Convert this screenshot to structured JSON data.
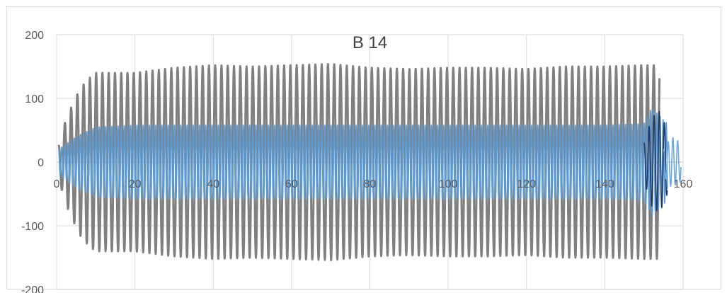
{
  "chart_data": {
    "type": "line",
    "title": "B 14",
    "xlabel": "",
    "ylabel": "",
    "xlim": [
      0,
      160
    ],
    "ylim": [
      -200,
      200
    ],
    "x_ticks": [
      0,
      20,
      40,
      60,
      80,
      100,
      120,
      140,
      160
    ],
    "x_tick_labels": [
      "0",
      "20",
      "40",
      "60",
      "80",
      "100",
      "120",
      "140",
      "160"
    ],
    "y_ticks": [
      -200,
      -100,
      0,
      100,
      200
    ],
    "y_tick_labels": [
      "-200",
      "-100",
      "0",
      "100",
      "200"
    ],
    "grid": true,
    "legend": "none",
    "series": [
      {
        "color": "#808080",
        "x_start": 0.5,
        "x_end": 154,
        "period": 1.6,
        "envelope": [
          [
            0.5,
            25
          ],
          [
            2,
            60
          ],
          [
            4,
            90
          ],
          [
            6,
            115
          ],
          [
            8,
            130
          ],
          [
            10,
            140
          ],
          [
            20,
            140
          ],
          [
            30,
            148
          ],
          [
            40,
            152
          ],
          [
            50,
            150
          ],
          [
            60,
            152
          ],
          [
            70,
            154
          ],
          [
            80,
            148
          ],
          [
            90,
            146
          ],
          [
            100,
            148
          ],
          [
            110,
            148
          ],
          [
            120,
            146
          ],
          [
            130,
            150
          ],
          [
            140,
            150
          ],
          [
            150,
            152
          ],
          [
            154,
            152
          ]
        ]
      },
      {
        "color": "#5b9bd5",
        "x_start": 0.5,
        "x_end": 156,
        "period": 0.8,
        "envelope": [
          [
            0.5,
            20
          ],
          [
            5,
            40
          ],
          [
            10,
            55
          ],
          [
            20,
            58
          ],
          [
            50,
            58
          ],
          [
            100,
            58
          ],
          [
            140,
            58
          ],
          [
            150,
            60
          ],
          [
            152,
            85
          ],
          [
            156,
            60
          ]
        ]
      },
      {
        "color": "#1f3864",
        "x_start": 150,
        "x_end": 156,
        "period": 1.3,
        "envelope": [
          [
            150,
            30
          ],
          [
            152,
            70
          ],
          [
            154,
            80
          ],
          [
            156,
            50
          ]
        ]
      },
      {
        "color": "#6fa8dc",
        "x_start": 155,
        "x_end": 159.5,
        "period": 1.2,
        "envelope": [
          [
            155,
            20
          ],
          [
            157,
            40
          ],
          [
            159.5,
            30
          ]
        ]
      }
    ]
  }
}
